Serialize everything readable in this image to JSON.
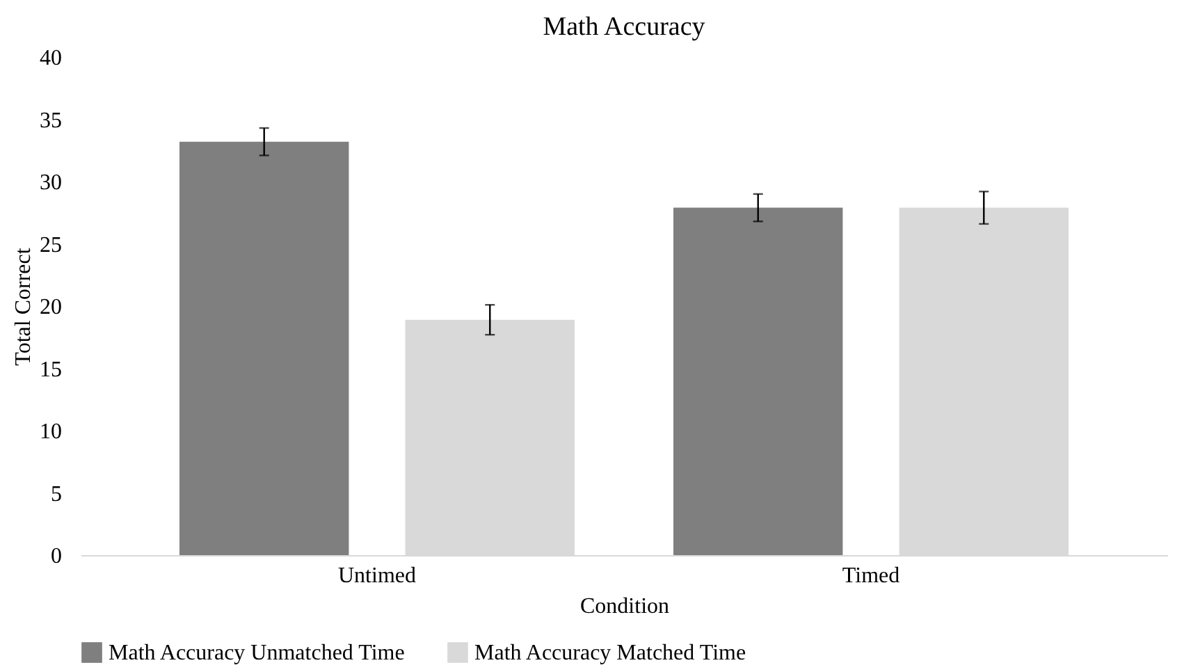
{
  "chart_data": {
    "type": "bar",
    "title": "Math Accuracy",
    "xlabel": "Condition",
    "ylabel": "Total Correct",
    "categories": [
      "Untimed",
      "Timed"
    ],
    "series": [
      {
        "name": "Math Accuracy Unmatched Time",
        "color": "#7f7f7f",
        "values": [
          33.2,
          27.9
        ],
        "errors": [
          1.1,
          1.1
        ]
      },
      {
        "name": "Math Accuracy Matched Time",
        "color": "#d9d9d9",
        "values": [
          18.9,
          27.9
        ],
        "errors": [
          1.2,
          1.3
        ]
      }
    ],
    "ylim": [
      0,
      40
    ],
    "yticks": [
      0,
      5,
      10,
      15,
      20,
      25,
      30,
      35,
      40
    ],
    "grid": false,
    "legend": "bottom"
  }
}
